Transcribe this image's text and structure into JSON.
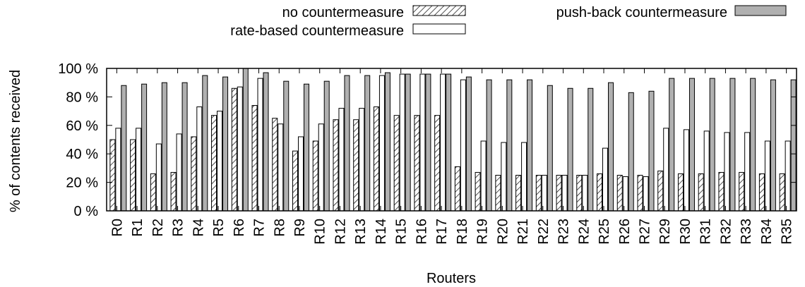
{
  "chart_data": {
    "type": "bar",
    "xlabel": "Routers",
    "ylabel": "% of contents received",
    "ylim": [
      0,
      100
    ],
    "yticks": [
      "0 %",
      "20 %",
      "40 %",
      "60 %",
      "80 %",
      "100 %"
    ],
    "grid": false,
    "legend_position": "top",
    "categories": [
      "R0",
      "R1",
      "R2",
      "R3",
      "R4",
      "R5",
      "R6",
      "R7",
      "R8",
      "R9",
      "R10",
      "R12",
      "R13",
      "R14",
      "R15",
      "R16",
      "R17",
      "R18",
      "R19",
      "R20",
      "R21",
      "R22",
      "R23",
      "R24",
      "R25",
      "R26",
      "R27",
      "R29",
      "R30",
      "R31",
      "R32",
      "R33",
      "R34",
      "R35"
    ],
    "series": [
      {
        "name": "no countermeasure",
        "pattern": "hatch",
        "color": "#ffffff",
        "values": [
          50,
          50,
          26,
          27,
          52,
          67,
          86,
          74,
          65,
          42,
          49,
          64,
          64,
          73,
          67,
          67,
          67,
          31,
          27,
          25,
          25,
          25,
          25,
          25,
          26,
          25,
          25,
          28,
          26,
          26,
          27,
          27,
          26,
          26
        ]
      },
      {
        "name": "rate-based countermeasure",
        "pattern": "solid",
        "color": "#ffffff",
        "values": [
          58,
          58,
          47,
          54,
          73,
          70,
          87,
          93,
          61,
          52,
          61,
          72,
          72,
          95,
          96,
          96,
          96,
          92,
          49,
          48,
          48,
          25,
          25,
          25,
          44,
          24,
          24,
          58,
          57,
          56,
          55,
          55,
          49,
          49
        ]
      },
      {
        "name": "push-back countermeasure",
        "pattern": "solid",
        "color": "#b0b0b0",
        "values": [
          88,
          89,
          90,
          90,
          95,
          94,
          100,
          97,
          91,
          89,
          91,
          95,
          95,
          97,
          96,
          96,
          96,
          94,
          92,
          92,
          92,
          88,
          86,
          86,
          90,
          83,
          84,
          93,
          93,
          93,
          93,
          93,
          92,
          92
        ]
      }
    ]
  }
}
